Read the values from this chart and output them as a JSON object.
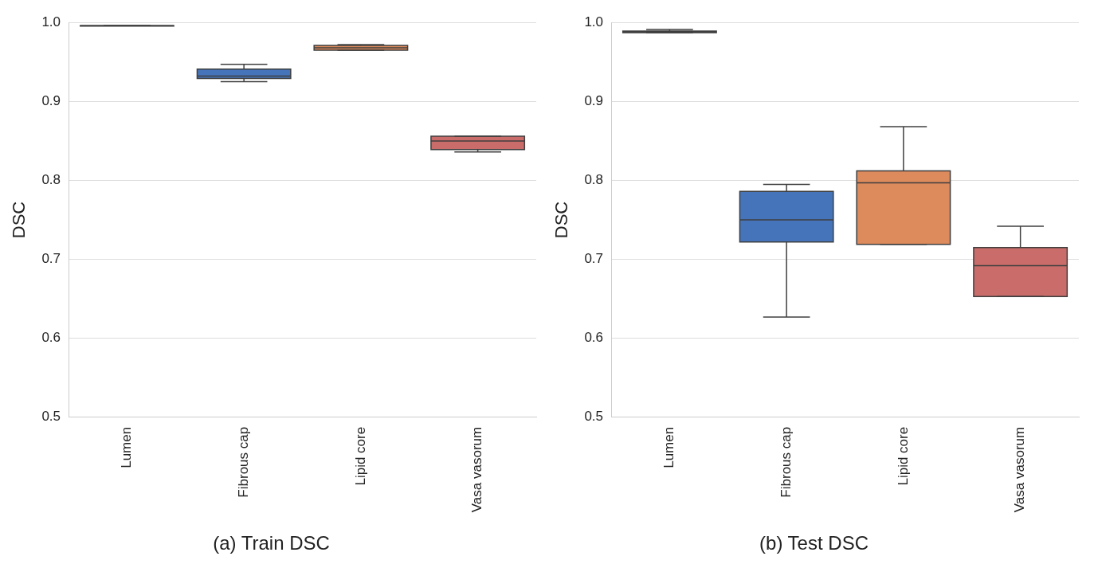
{
  "chart_data": [
    {
      "type": "box",
      "title": "(a) Train DSC",
      "ylabel": "DSC",
      "categories": [
        "Lumen",
        "Fibrous cap",
        "Lipid core",
        "Vasa vasorum"
      ],
      "boxes": [
        {
          "low": 0.996,
          "q1": 0.996,
          "median": 0.996,
          "q3": 0.996,
          "high": 0.996
        },
        {
          "low": 0.925,
          "q1": 0.929,
          "median": 0.932,
          "q3": 0.941,
          "high": 0.947
        },
        {
          "low": 0.965,
          "q1": 0.965,
          "median": 0.968,
          "q3": 0.971,
          "high": 0.972
        },
        {
          "low": 0.836,
          "q1": 0.839,
          "median": 0.85,
          "q3": 0.856,
          "high": 0.856
        }
      ],
      "colors": [
        "#3f3f3f",
        "#4674bb",
        "#dd8a5c",
        "#c96c6a"
      ],
      "ylim": [
        0.5,
        1.0
      ],
      "yticks": [
        0.5,
        0.6,
        0.7,
        0.8,
        0.9,
        {
          "value": 1.0,
          "label": "1.0"
        }
      ],
      "grid": "y"
    },
    {
      "type": "box",
      "title": "(b) Test DSC",
      "ylabel": "DSC",
      "categories": [
        "Lumen",
        "Fibrous cap",
        "Lipid core",
        "Vasa vasorum"
      ],
      "boxes": [
        {
          "low": 0.987,
          "q1": 0.987,
          "median": 0.988,
          "q3": 0.989,
          "high": 0.991
        },
        {
          "low": 0.627,
          "q1": 0.722,
          "median": 0.75,
          "q3": 0.786,
          "high": 0.795
        },
        {
          "low": 0.719,
          "q1": 0.719,
          "median": 0.797,
          "q3": 0.812,
          "high": 0.868
        },
        {
          "low": 0.653,
          "q1": 0.653,
          "median": 0.692,
          "q3": 0.715,
          "high": 0.742
        }
      ],
      "colors": [
        "#3f3f3f",
        "#4674bb",
        "#dd8a5c",
        "#c96c6a"
      ],
      "ylim": [
        0.5,
        1.0
      ],
      "yticks": [
        0.5,
        0.6,
        0.7,
        0.8,
        0.9,
        {
          "value": 1.0,
          "label": "1.0"
        }
      ],
      "grid": "y"
    }
  ]
}
